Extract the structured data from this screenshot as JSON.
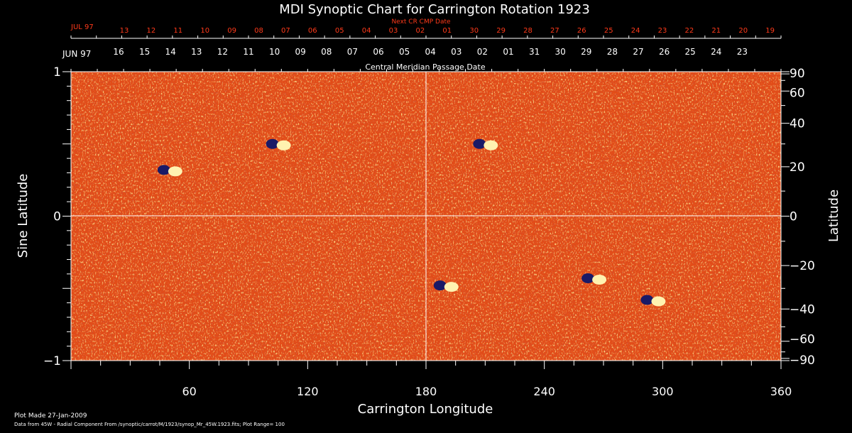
{
  "colors": {
    "background": "#000000",
    "axis": "#ffffff",
    "next_cr_labels": "#ff3a1a",
    "map_base": "#e8541a",
    "map_positive": "#fff2b0",
    "map_negative": "#1a1a66"
  },
  "chart_data": {
    "type": "heatmap",
    "title": "MDI Synoptic Chart for Carrington Rotation 1923",
    "xlabel": "Carrington Longitude",
    "ylabel_left": "Sine Latitude",
    "ylabel_right": "Latitude",
    "xlim": [
      0,
      360
    ],
    "ylim": [
      -1,
      1
    ],
    "x_ticks": [
      60,
      120,
      180,
      240,
      300,
      360
    ],
    "y_ticks_left": [
      "1",
      "0",
      "−1"
    ],
    "y_ticks_left_values": [
      1,
      0,
      -1
    ],
    "y_ticks_right": [
      "90",
      "60",
      "40",
      "20",
      "0",
      "−20",
      "−40",
      "−60",
      "−90"
    ],
    "y_ticks_right_values": [
      90,
      60,
      40,
      20,
      0,
      -20,
      -40,
      -60,
      -90
    ],
    "top_axis_upper": {
      "title": "Next CR CMP Date",
      "month_label": "JUL 97",
      "day_labels": [
        "13",
        "12",
        "11",
        "10",
        "09",
        "08",
        "07",
        "06",
        "05",
        "04",
        "03",
        "02",
        "01",
        "30",
        "29",
        "28",
        "27",
        "26",
        "25",
        "24",
        "23",
        "22",
        "21",
        "20",
        "19"
      ]
    },
    "top_axis_lower": {
      "title": "Central Meridian Passage Date",
      "month_label": "JUN 97",
      "day_labels": [
        "16",
        "15",
        "14",
        "13",
        "12",
        "11",
        "10",
        "09",
        "08",
        "07",
        "06",
        "05",
        "04",
        "03",
        "02",
        "01",
        "31",
        "30",
        "29",
        "28",
        "27",
        "26",
        "25",
        "24",
        "23"
      ]
    },
    "grid_lines": {
      "longitude": 180,
      "sine_latitude": 0
    },
    "active_regions": [
      {
        "lon": 50,
        "sinlat": 0.32,
        "polarity": "bipolar"
      },
      {
        "lon": 105,
        "sinlat": 0.5,
        "polarity": "bipolar"
      },
      {
        "lon": 210,
        "sinlat": 0.5,
        "polarity": "bipolar"
      },
      {
        "lon": 190,
        "sinlat": -0.48,
        "polarity": "bipolar"
      },
      {
        "lon": 265,
        "sinlat": -0.43,
        "polarity": "bipolar"
      },
      {
        "lon": 295,
        "sinlat": -0.58,
        "polarity": "bipolar"
      }
    ]
  },
  "footer": {
    "plot_made": "Plot Made 27-Jan-2009",
    "data_source": "Data from 45W - Radial Component From /synoptic/carrot/M/1923/synop_Mr_45W.1923.fits; Plot Range= 100"
  }
}
